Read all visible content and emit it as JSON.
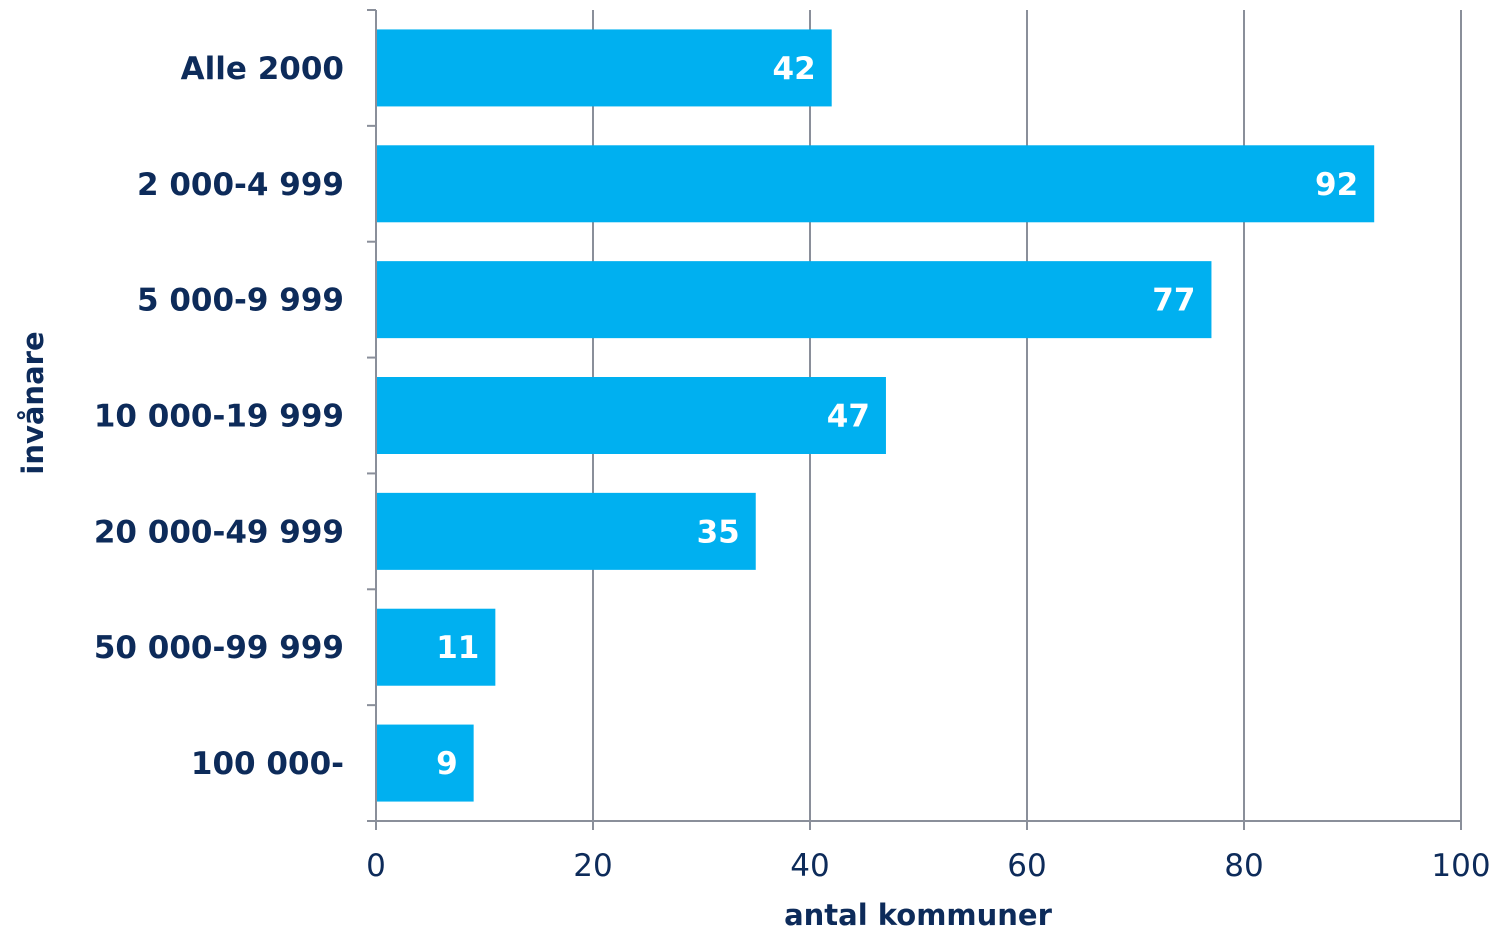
{
  "chart_data": {
    "type": "bar",
    "orientation": "horizontal",
    "categories": [
      "Alle 2000",
      "2 000-4 999",
      "5 000-9 999",
      "10 000-19 999",
      "20 000-49 999",
      "50 000-99 999",
      "100 000-"
    ],
    "values": [
      42,
      92,
      77,
      47,
      35,
      11,
      9
    ],
    "xlabel": "antal kommuner",
    "ylabel": "invånare",
    "xlim": [
      0,
      100
    ],
    "xticks": [
      0,
      20,
      40,
      60,
      80,
      100
    ],
    "grid": "vertical",
    "legend": "none",
    "data_labels": "inside-end"
  },
  "colors": {
    "bar": "#00b0f0",
    "text": "#0d2b5a",
    "grid": "#8a8f9a",
    "value_text": "#ffffff"
  }
}
